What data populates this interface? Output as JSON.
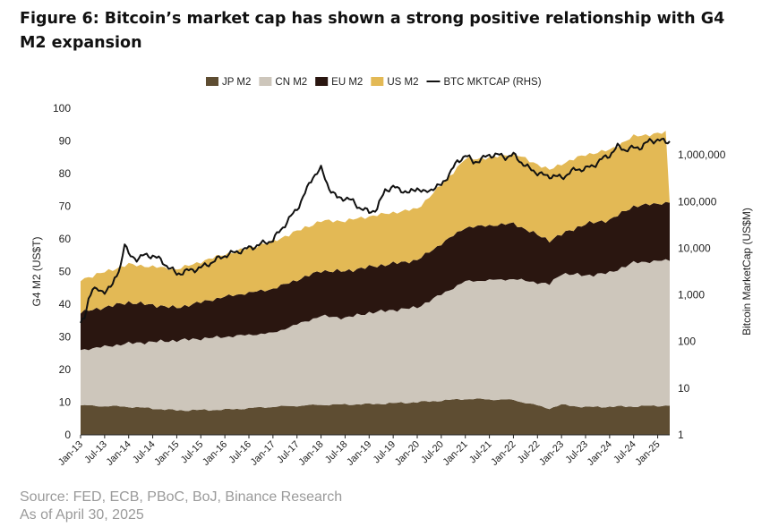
{
  "figure": {
    "title": "Figure 6: Bitcoin’s market cap has shown a strong positive relationship with G4 M2 expansion",
    "source": "Source: FED, ECB, PBoC, BoJ, Binance Research",
    "date": "As of April 30, 2025"
  },
  "chart_data": {
    "type": "area",
    "stacked": true,
    "title": "",
    "ylabel": "G4 M2 (US$T)",
    "y2label": "Bitcoin MarketCap (US$M)",
    "ylim": [
      0,
      100
    ],
    "y_ticks": [
      0,
      10,
      20,
      30,
      40,
      50,
      60,
      70,
      80,
      90,
      100
    ],
    "y2_scale": "log",
    "y2lim": [
      1,
      10000000
    ],
    "y2_ticks": [
      "1",
      "10",
      "100",
      "1,000",
      "10,000",
      "100,000",
      "1,000,000"
    ],
    "x_ticks": [
      "Jan-13",
      "Jul-13",
      "Jan-14",
      "Jul-14",
      "Jan-15",
      "Jul-15",
      "Jan-16",
      "Jul-16",
      "Jan-17",
      "Jul-17",
      "Jan-18",
      "Jul-18",
      "Jan-19",
      "Jul-19",
      "Jan-20",
      "Jul-20",
      "Jan-21",
      "Jul-21",
      "Jan-22",
      "Jul-22",
      "Jan-23",
      "Jul-23",
      "Jan-24",
      "Jul-24",
      "Jan-25"
    ],
    "x_tick_index": [
      0,
      6,
      12,
      18,
      24,
      30,
      36,
      42,
      48,
      54,
      60,
      66,
      72,
      78,
      84,
      90,
      96,
      102,
      108,
      114,
      120,
      126,
      132,
      138,
      144
    ],
    "x_range_index": [
      0,
      147
    ],
    "legend": [
      "JP M2",
      "CN M2",
      "EU M2",
      "US M2",
      "BTC MKTCAP (RHS)"
    ],
    "legend_position": "top",
    "colors": {
      "JP M2": "#5e4d32",
      "CN M2": "#cdc6bb",
      "EU M2": "#2a1610",
      "US M2": "#e3b955",
      "BTC MKTCAP (RHS)": "#111111"
    },
    "series_points": [
      {
        "name": "JP M2",
        "x": [
          0,
          12,
          24,
          36,
          48,
          60,
          72,
          84,
          96,
          108,
          117,
          120,
          126,
          132,
          138,
          147
        ],
        "values": [
          9,
          8.6,
          7.5,
          7.7,
          8.6,
          9.2,
          9.4,
          10,
          11,
          10.7,
          8.1,
          9.2,
          8.5,
          8.6,
          8.7,
          9
        ]
      },
      {
        "name": "CN M2",
        "x": [
          0,
          12,
          24,
          36,
          48,
          60,
          66,
          72,
          84,
          96,
          108,
          117,
          120,
          126,
          132,
          138,
          147
        ],
        "values": [
          17,
          19.4,
          21.4,
          22.3,
          22.6,
          27.2,
          26.5,
          28,
          29,
          36,
          37,
          38,
          40.2,
          40.3,
          41,
          44,
          44.5
        ]
      },
      {
        "name": "EU M2",
        "x": [
          0,
          12,
          24,
          36,
          48,
          60,
          66,
          72,
          84,
          96,
          108,
          117,
          120,
          126,
          132,
          138,
          147
        ],
        "values": [
          11.5,
          12.6,
          10,
          12.3,
          13.5,
          13.8,
          14.3,
          14,
          14.5,
          16.5,
          17,
          13.4,
          12,
          15.8,
          16.2,
          17.3,
          17.7
        ]
      },
      {
        "name": "US M2",
        "x": [
          0,
          12,
          24,
          36,
          48,
          60,
          72,
          84,
          90,
          96,
          102,
          108,
          114,
          117,
          120,
          126,
          132,
          138,
          146,
          147
        ],
        "values": [
          10,
          11.6,
          11.8,
          13,
          14.5,
          15.3,
          15.5,
          15.7,
          18,
          21,
          20.7,
          21.5,
          21.6,
          21.6,
          21.6,
          21.2,
          21.4,
          21.4,
          21.5,
          0
        ]
      },
      {
        "name": "BTC MKTCAP (RHS)",
        "x": [
          0,
          1,
          2,
          3,
          4,
          5,
          6,
          7,
          8,
          9,
          10,
          11,
          12,
          14,
          16,
          18,
          20,
          24,
          25,
          30,
          36,
          42,
          48,
          54,
          56,
          58,
          60,
          62,
          63,
          64,
          66,
          68,
          70,
          72,
          74,
          76,
          78,
          80,
          82,
          84,
          86,
          88,
          90,
          92,
          94,
          96,
          98,
          100,
          102,
          104,
          106,
          108,
          110,
          112,
          114,
          116,
          118,
          120,
          122,
          124,
          126,
          128,
          130,
          132,
          134,
          136,
          138,
          140,
          142,
          144,
          146,
          147
        ],
        "values": [
          250,
          300,
          800,
          1500,
          1300,
          1100,
          1200,
          1500,
          1600,
          2500,
          4500,
          13000,
          7000,
          6000,
          7000,
          7000,
          5500,
          2800,
          3000,
          3800,
          7000,
          10000,
          15000,
          70000,
          150000,
          350000,
          500000,
          200000,
          150000,
          120000,
          120000,
          100000,
          70000,
          60000,
          70000,
          180000,
          200000,
          180000,
          150000,
          200000,
          150000,
          200000,
          220000,
          400000,
          700000,
          1000000,
          700000,
          800000,
          1000000,
          1000000,
          900000,
          1000000,
          700000,
          500000,
          420000,
          350000,
          360000,
          320000,
          420000,
          500000,
          500000,
          600000,
          800000,
          1000000,
          1500000,
          1300000,
          1400000,
          1500000,
          2000000,
          2100000,
          1900000,
          2000000
        ]
      }
    ]
  }
}
